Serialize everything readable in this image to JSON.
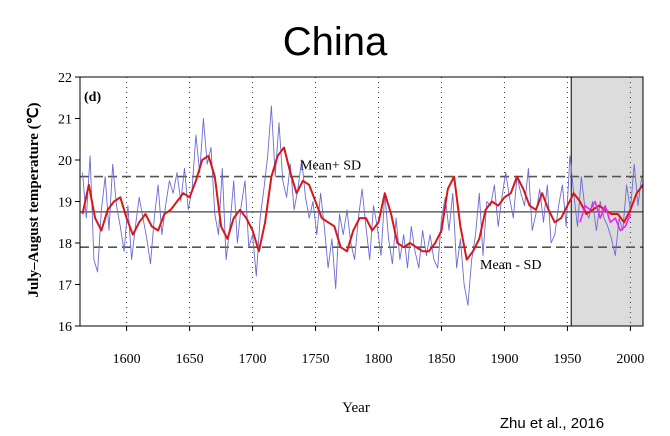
{
  "title": "China",
  "credit": "Zhu et al., 2016",
  "chart_data": {
    "type": "line",
    "xlabel": "Year",
    "ylabel": "July–August temperature (℃)",
    "panel_label": "(d)",
    "xlim": [
      1563,
      2010
    ],
    "ylim": [
      16,
      22
    ],
    "x_ticks": [
      1600,
      1650,
      1700,
      1750,
      1800,
      1850,
      1900,
      1950,
      2000
    ],
    "y_ticks": [
      16,
      17,
      18,
      19,
      20,
      21,
      22
    ],
    "grid": "vertical dotted lines at x ticks",
    "shaded_region": [
      1953,
      2010
    ],
    "reference_lines": [
      {
        "name": "Mean+ SD",
        "y": 19.6,
        "style": "dashed"
      },
      {
        "name": "Mean",
        "y": 18.75,
        "style": "solid"
      },
      {
        "name": "Mean - SD",
        "y": 17.9,
        "style": "dashed"
      }
    ],
    "series": [
      {
        "color": "#6b6bd6",
        "x": [
          1565,
          1568,
          1571,
          1574,
          1577,
          1580,
          1583,
          1586,
          1589,
          1592,
          1595,
          1598,
          1601,
          1604,
          1607,
          1610,
          1613,
          1616,
          1619,
          1622,
          1625,
          1628,
          1631,
          1634,
          1637,
          1640,
          1643,
          1646,
          1649,
          1652,
          1655,
          1658,
          1661,
          1664,
          1667,
          1670,
          1673,
          1676,
          1679,
          1682,
          1685,
          1688,
          1691,
          1694,
          1697,
          1700,
          1703,
          1706,
          1709,
          1712,
          1715,
          1718,
          1721,
          1724,
          1727,
          1730,
          1733,
          1736,
          1739,
          1742,
          1745,
          1748,
          1751,
          1754,
          1757,
          1760,
          1763,
          1766,
          1769,
          1772,
          1775,
          1778,
          1781,
          1784,
          1787,
          1790,
          1793,
          1796,
          1799,
          1802,
          1805,
          1808,
          1811,
          1814,
          1817,
          1820,
          1823,
          1826,
          1829,
          1832,
          1835,
          1838,
          1841,
          1844,
          1847,
          1850,
          1853,
          1856,
          1859,
          1862,
          1865,
          1868,
          1871,
          1874,
          1877,
          1880,
          1883,
          1886,
          1889,
          1892,
          1895,
          1898,
          1901,
          1904,
          1907,
          1910,
          1913,
          1916,
          1919,
          1922,
          1925,
          1928,
          1931,
          1934,
          1937,
          1940,
          1943,
          1946,
          1949,
          1952,
          1955,
          1958,
          1961,
          1964,
          1967,
          1970,
          1973,
          1976,
          1979,
          1982,
          1985,
          1988,
          1991,
          1994,
          1997,
          2000,
          2003,
          2006,
          2009
        ],
        "values": [
          19.7,
          18.6,
          20.1,
          17.6,
          17.3,
          18.8,
          19.6,
          18.3,
          19.9,
          18.9,
          18.4,
          17.8,
          18.9,
          17.6,
          18.4,
          19.1,
          18.6,
          18.1,
          17.5,
          18.6,
          19.4,
          18.2,
          18.9,
          19.5,
          19.2,
          19.7,
          19.0,
          19.8,
          18.8,
          19.3,
          20.6,
          19.7,
          21.0,
          19.9,
          20.3,
          18.7,
          18.2,
          19.8,
          17.6,
          18.4,
          19.5,
          18.0,
          18.9,
          19.5,
          17.9,
          18.2,
          17.2,
          18.6,
          19.3,
          20.1,
          21.3,
          19.6,
          20.9,
          19.5,
          19.1,
          19.9,
          18.8,
          19.3,
          20.0,
          19.1,
          18.6,
          19.0,
          18.2,
          19.2,
          18.4,
          17.4,
          18.1,
          16.9,
          18.7,
          18.2,
          18.8,
          18.0,
          17.6,
          18.6,
          19.3,
          18.4,
          17.6,
          18.9,
          18.4,
          17.7,
          19.2,
          18.1,
          17.5,
          18.6,
          17.6,
          18.2,
          17.4,
          18.4,
          17.8,
          17.4,
          18.3,
          17.7,
          18.2,
          17.6,
          17.4,
          18.6,
          19.1,
          18.3,
          19.2,
          17.4,
          18.1,
          17.0,
          16.5,
          17.6,
          18.2,
          19.2,
          17.7,
          19.0,
          18.9,
          19.4,
          18.4,
          19.1,
          19.7,
          19.1,
          18.6,
          19.6,
          19.2,
          18.9,
          19.8,
          18.3,
          18.7,
          19.3,
          18.5,
          19.4,
          18.0,
          18.2,
          18.9,
          19.4,
          18.4,
          20.1,
          19.2,
          18.4,
          19.6,
          18.8,
          18.6,
          19.0,
          18.3,
          19.0,
          18.6,
          18.4,
          18.1,
          17.7,
          18.6,
          18.3,
          19.4,
          18.8,
          19.9,
          18.9,
          19.6
        ]
      },
      {
        "color": "#d81818",
        "x": [
          1565,
          1570,
          1575,
          1580,
          1585,
          1590,
          1595,
          1600,
          1605,
          1610,
          1615,
          1620,
          1625,
          1630,
          1635,
          1640,
          1645,
          1650,
          1655,
          1660,
          1665,
          1670,
          1675,
          1680,
          1685,
          1690,
          1695,
          1700,
          1705,
          1710,
          1715,
          1720,
          1725,
          1730,
          1735,
          1740,
          1745,
          1750,
          1755,
          1760,
          1765,
          1770,
          1775,
          1780,
          1785,
          1790,
          1795,
          1800,
          1805,
          1810,
          1815,
          1820,
          1825,
          1830,
          1835,
          1840,
          1845,
          1850,
          1855,
          1860,
          1865,
          1870,
          1875,
          1880,
          1885,
          1890,
          1895,
          1900,
          1905,
          1910,
          1915,
          1920,
          1925,
          1930,
          1935,
          1940,
          1945,
          1950,
          1955,
          1960,
          1965,
          1970,
          1975,
          1980,
          1985,
          1990,
          1995,
          2000,
          2005,
          2010
        ],
        "values": [
          18.7,
          19.4,
          18.6,
          18.3,
          18.8,
          19.0,
          19.1,
          18.6,
          18.2,
          18.5,
          18.7,
          18.4,
          18.3,
          18.7,
          18.8,
          19.0,
          19.2,
          19.1,
          19.5,
          20.0,
          20.1,
          19.6,
          18.4,
          18.1,
          18.6,
          18.8,
          18.6,
          18.3,
          17.8,
          18.5,
          19.6,
          20.1,
          20.3,
          19.7,
          19.2,
          19.5,
          19.4,
          19.0,
          18.6,
          18.5,
          18.4,
          17.9,
          17.8,
          18.3,
          18.6,
          18.6,
          18.3,
          18.5,
          19.2,
          18.7,
          18.0,
          17.9,
          18.0,
          17.9,
          17.8,
          17.8,
          18.0,
          18.3,
          19.3,
          19.6,
          18.4,
          17.6,
          17.8,
          18.1,
          18.8,
          19.0,
          18.9,
          19.1,
          19.2,
          19.6,
          19.3,
          18.9,
          18.8,
          19.2,
          18.8,
          18.5,
          18.6,
          18.9,
          19.2,
          19.0,
          18.7,
          18.8,
          18.9,
          18.8,
          18.7,
          18.7,
          18.5,
          18.8,
          19.2,
          19.4
        ]
      },
      {
        "color": "#ee22ee",
        "x": [
          1960,
          1964,
          1968,
          1972,
          1976,
          1980,
          1984,
          1988,
          1992,
          1996,
          2000
        ],
        "values": [
          18.5,
          18.9,
          18.8,
          19.0,
          18.6,
          18.9,
          18.5,
          18.6,
          18.3,
          18.4,
          18.7
        ]
      }
    ]
  }
}
